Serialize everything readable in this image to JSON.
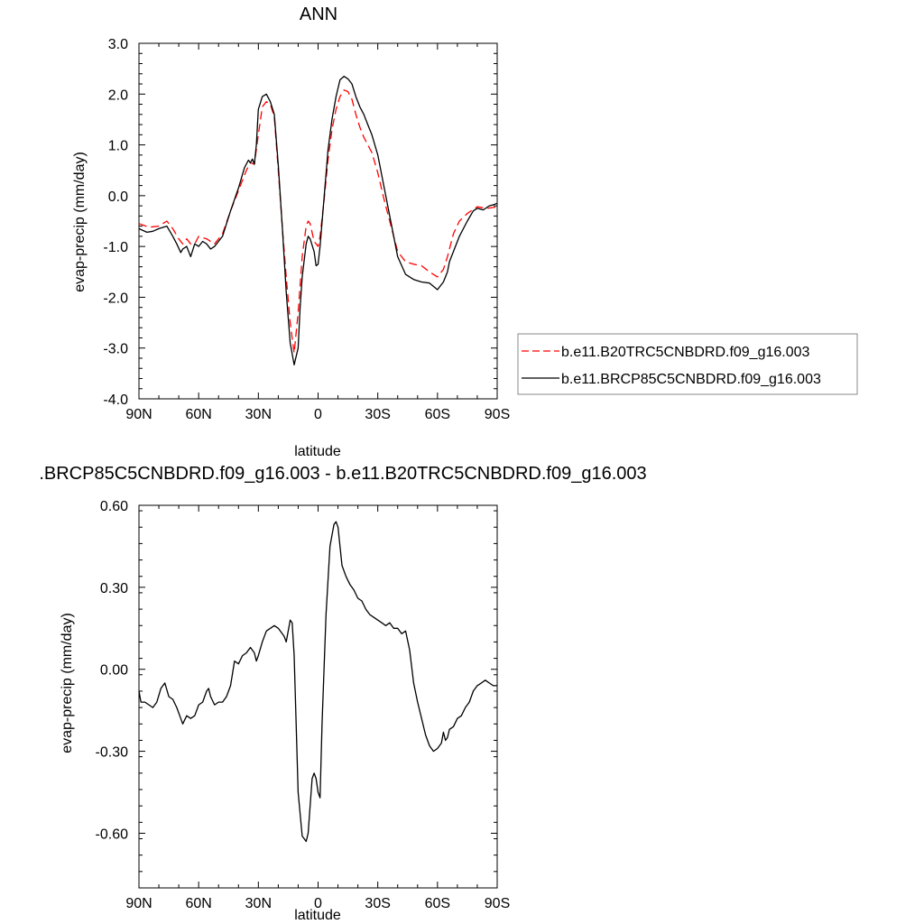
{
  "chart_data": [
    {
      "type": "line",
      "title": "ANN",
      "xlabel": "latitude",
      "ylabel": "evap-precip (mm/day)",
      "xlim": [
        90,
        -90
      ],
      "ylim": [
        -4.0,
        3.0
      ],
      "x_ticks": [
        {
          "value": 90,
          "label": "90N"
        },
        {
          "value": 60,
          "label": "60N"
        },
        {
          "value": 30,
          "label": "30N"
        },
        {
          "value": 0,
          "label": "0"
        },
        {
          "value": -30,
          "label": "30S"
        },
        {
          "value": -60,
          "label": "60S"
        },
        {
          "value": -90,
          "label": "90S"
        }
      ],
      "y_ticks": [
        {
          "value": 3.0,
          "label": "3.0"
        },
        {
          "value": 2.0,
          "label": "2.0"
        },
        {
          "value": 1.0,
          "label": "1.0"
        },
        {
          "value": 0.0,
          "label": "0.0"
        },
        {
          "value": -1.0,
          "label": "-1.0"
        },
        {
          "value": -2.0,
          "label": "-2.0"
        },
        {
          "value": -3.0,
          "label": "-3.0"
        },
        {
          "value": -4.0,
          "label": "-4.0"
        }
      ],
      "legend": "right",
      "series": [
        {
          "name": "b.e11.B20TRC5CNBDRD.f09_g16.003",
          "color": "#ff0000",
          "style": "dashed",
          "x": [
            90,
            85,
            80,
            76,
            73,
            70,
            68,
            66,
            64,
            62,
            60,
            56,
            52,
            48,
            44,
            40,
            36,
            34,
            32,
            30,
            28,
            26,
            24,
            22,
            20,
            18,
            16,
            14,
            12,
            10,
            8,
            6,
            5,
            4,
            2,
            0,
            -1,
            -3,
            -5,
            -7,
            -9,
            -11,
            -13,
            -15,
            -17,
            -19,
            -21,
            -23,
            -25,
            -27,
            -30,
            -33,
            -36,
            -40,
            -44,
            -48,
            -52,
            -56,
            -60,
            -63,
            -65,
            -68,
            -71,
            -75,
            -80,
            -85,
            -90
          ],
          "y": [
            -0.55,
            -0.62,
            -0.6,
            -0.5,
            -0.65,
            -0.85,
            -0.95,
            -0.85,
            -0.95,
            -0.95,
            -0.8,
            -0.85,
            -0.95,
            -0.75,
            -0.3,
            0.1,
            0.5,
            0.65,
            0.62,
            1.2,
            1.75,
            1.85,
            1.8,
            1.55,
            0.5,
            -0.6,
            -1.6,
            -2.5,
            -3.1,
            -2.3,
            -1.2,
            -0.6,
            -0.5,
            -0.55,
            -0.9,
            -1.0,
            -0.8,
            -0.1,
            0.7,
            1.3,
            1.7,
            1.95,
            2.08,
            2.05,
            1.9,
            1.6,
            1.35,
            1.15,
            1.0,
            0.85,
            0.45,
            -0.05,
            -0.5,
            -1.1,
            -1.3,
            -1.35,
            -1.38,
            -1.5,
            -1.6,
            -1.45,
            -1.2,
            -0.75,
            -0.5,
            -0.35,
            -0.22,
            -0.25,
            -0.22
          ]
        },
        {
          "name": "b.e11.BRCP85C5CNBDRD.f09_g16.003",
          "color": "#000000",
          "style": "solid",
          "x": [
            90,
            86,
            83,
            80,
            76,
            73,
            71,
            69,
            68,
            66,
            65,
            64,
            62,
            60,
            58,
            56,
            54,
            52,
            48,
            44,
            40,
            37,
            35,
            34,
            33,
            32,
            31,
            30,
            28,
            26,
            24,
            22,
            20,
            18,
            16,
            14,
            12,
            10,
            9,
            8,
            6,
            5,
            4,
            2,
            1,
            0,
            -1,
            -3,
            -5,
            -7,
            -9,
            -11,
            -13,
            -15,
            -17,
            -19,
            -21,
            -23,
            -25,
            -27,
            -30,
            -33,
            -36,
            -40,
            -44,
            -48,
            -52,
            -56,
            -60,
            -63,
            -65,
            -66,
            -68,
            -71,
            -75,
            -78,
            -80,
            -83,
            -86,
            -88,
            -90
          ],
          "y": [
            -0.65,
            -0.72,
            -0.7,
            -0.65,
            -0.6,
            -0.8,
            -0.95,
            -1.12,
            -1.05,
            -1.0,
            -1.1,
            -1.2,
            -0.95,
            -1.0,
            -0.9,
            -0.95,
            -1.05,
            -1.0,
            -0.8,
            -0.3,
            0.15,
            0.55,
            0.7,
            0.65,
            0.72,
            0.62,
            1.0,
            1.7,
            1.95,
            2.0,
            1.85,
            1.6,
            0.6,
            -0.6,
            -1.9,
            -2.9,
            -3.33,
            -3.0,
            -2.2,
            -1.6,
            -0.95,
            -0.8,
            -0.85,
            -1.1,
            -1.38,
            -1.35,
            -1.0,
            -0.05,
            0.9,
            1.5,
            1.95,
            2.28,
            2.35,
            2.3,
            2.2,
            1.95,
            1.75,
            1.6,
            1.4,
            1.2,
            0.8,
            0.2,
            -0.4,
            -1.2,
            -1.55,
            -1.65,
            -1.7,
            -1.72,
            -1.85,
            -1.7,
            -1.5,
            -1.3,
            -1.1,
            -0.8,
            -0.5,
            -0.3,
            -0.25,
            -0.28,
            -0.2,
            -0.18,
            -0.15
          ]
        }
      ]
    },
    {
      "type": "line",
      "title": ".BRCP85C5CNBDRD.f09_g16.003 - b.e11.B20TRC5CNBDRD.f09_g16.003",
      "xlabel": "latitude",
      "ylabel": "evap-precip (mm/day)",
      "xlim": [
        90,
        -90
      ],
      "ylim": [
        -0.8,
        0.6
      ],
      "x_ticks": [
        {
          "value": 90,
          "label": "90N"
        },
        {
          "value": 60,
          "label": "60N"
        },
        {
          "value": 30,
          "label": "30N"
        },
        {
          "value": 0,
          "label": "0"
        },
        {
          "value": -30,
          "label": "30S"
        },
        {
          "value": -60,
          "label": "60S"
        },
        {
          "value": -90,
          "label": "90S"
        }
      ],
      "y_ticks": [
        {
          "value": 0.6,
          "label": "0.60"
        },
        {
          "value": 0.3,
          "label": "0.30"
        },
        {
          "value": 0.0,
          "label": "0.00"
        },
        {
          "value": -0.3,
          "label": "-0.30"
        },
        {
          "value": -0.6,
          "label": "-0.60"
        }
      ],
      "series": [
        {
          "color": "#000000",
          "style": "solid",
          "x": [
            90,
            89,
            87,
            85,
            83,
            81,
            79,
            77,
            75,
            73,
            71,
            69,
            68,
            66,
            64,
            62,
            60,
            58,
            56,
            55,
            54,
            52,
            50,
            48,
            46,
            44,
            42,
            40,
            38,
            36,
            34,
            32,
            31,
            30,
            28,
            26,
            24,
            22,
            20,
            18,
            17,
            16,
            14,
            13,
            12,
            11,
            10,
            8,
            6,
            5,
            4,
            3,
            2,
            1,
            0,
            -1,
            -2,
            -4,
            -6,
            -8,
            -9,
            -10,
            -11,
            -12,
            -14,
            -16,
            -18,
            -20,
            -22,
            -24,
            -26,
            -28,
            -30,
            -32,
            -34,
            -36,
            -38,
            -40,
            -42,
            -44,
            -46,
            -48,
            -50,
            -52,
            -54,
            -56,
            -58,
            -60,
            -62,
            -63,
            -64,
            -65,
            -66,
            -68,
            -70,
            -72,
            -74,
            -76,
            -78,
            -80,
            -82,
            -84,
            -86,
            -88,
            -90
          ],
          "y": [
            -0.08,
            -0.12,
            -0.12,
            -0.13,
            -0.14,
            -0.12,
            -0.07,
            -0.05,
            -0.1,
            -0.11,
            -0.14,
            -0.18,
            -0.2,
            -0.17,
            -0.18,
            -0.17,
            -0.13,
            -0.12,
            -0.08,
            -0.07,
            -0.1,
            -0.13,
            -0.12,
            -0.12,
            -0.1,
            -0.06,
            0.03,
            0.02,
            0.05,
            0.06,
            0.08,
            0.06,
            0.03,
            0.05,
            0.1,
            0.14,
            0.15,
            0.16,
            0.15,
            0.13,
            0.12,
            0.1,
            0.18,
            0.17,
            0.05,
            -0.2,
            -0.45,
            -0.61,
            -0.63,
            -0.6,
            -0.5,
            -0.4,
            -0.38,
            -0.4,
            -0.45,
            -0.47,
            -0.2,
            0.2,
            0.45,
            0.53,
            0.54,
            0.52,
            0.45,
            0.38,
            0.34,
            0.31,
            0.29,
            0.26,
            0.25,
            0.22,
            0.2,
            0.19,
            0.18,
            0.17,
            0.16,
            0.17,
            0.15,
            0.15,
            0.13,
            0.14,
            0.07,
            -0.05,
            -0.12,
            -0.18,
            -0.24,
            -0.28,
            -0.3,
            -0.29,
            -0.27,
            -0.23,
            -0.26,
            -0.25,
            -0.22,
            -0.21,
            -0.18,
            -0.17,
            -0.14,
            -0.12,
            -0.08,
            -0.06,
            -0.05,
            -0.04,
            -0.05,
            -0.06,
            -0.06
          ]
        }
      ]
    }
  ]
}
